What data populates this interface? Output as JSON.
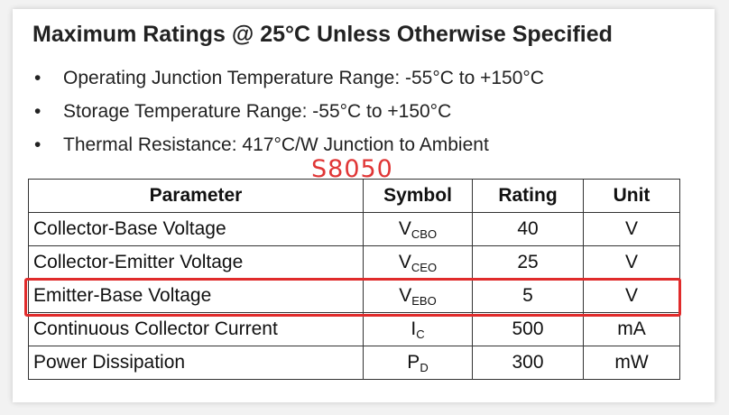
{
  "title": "Maximum Ratings @ 25°C Unless Otherwise Specified",
  "bullets": [
    "Operating Junction Temperature Range: -55°C to +150°C",
    "Storage Temperature Range: -55°C to +150°C",
    "Thermal Resistance: 417°C/W Junction to Ambient"
  ],
  "bullet_char": "•",
  "watermark": "S8050",
  "table": {
    "headers": [
      "Parameter",
      "Symbol",
      "Rating",
      "Unit"
    ],
    "rows": [
      {
        "parameter": "Collector-Base Voltage",
        "symbol": "V",
        "sub": "CBO",
        "rating": "40",
        "unit": "V"
      },
      {
        "parameter": "Collector-Emitter Voltage",
        "symbol": "V",
        "sub": "CEO",
        "rating": "25",
        "unit": "V"
      },
      {
        "parameter": "Emitter-Base Voltage",
        "symbol": "V",
        "sub": "EBO",
        "rating": "5",
        "unit": "V"
      },
      {
        "parameter": "Continuous Collector Current",
        "symbol": "I",
        "sub": "C",
        "rating": "500",
        "unit": "mA"
      },
      {
        "parameter": "Power Dissipation",
        "symbol": "P",
        "sub": "D",
        "rating": "300",
        "unit": "mW"
      }
    ]
  },
  "highlight_color": "#e02b2b"
}
